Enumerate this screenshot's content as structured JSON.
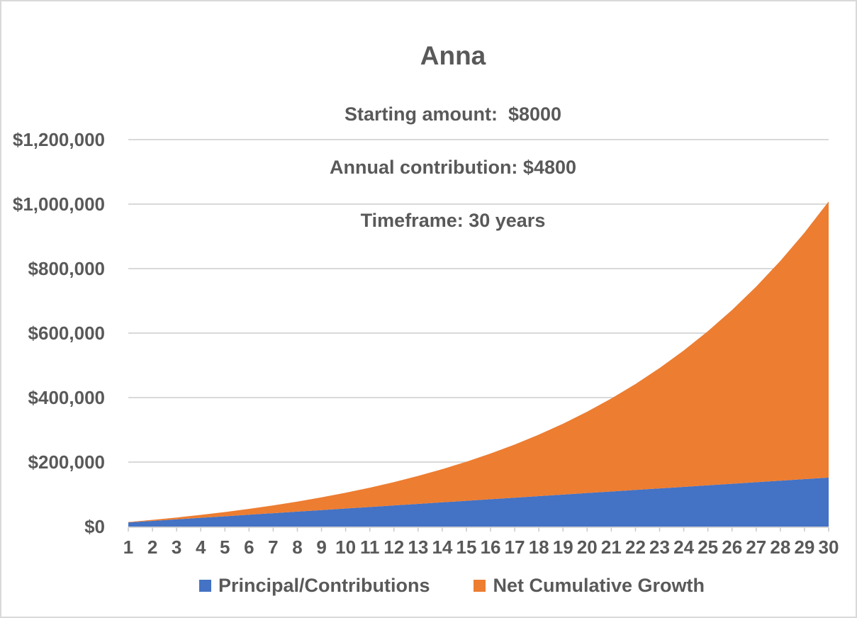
{
  "chart_data": {
    "type": "area",
    "stacked": true,
    "title": "Anna",
    "subtitle_lines": [
      "Starting amount:  $8000",
      "Annual contribution: $4800",
      "Timeframe: 30 years"
    ],
    "x": [
      1,
      2,
      3,
      4,
      5,
      6,
      7,
      8,
      9,
      10,
      11,
      12,
      13,
      14,
      15,
      16,
      17,
      18,
      19,
      20,
      21,
      22,
      23,
      24,
      25,
      26,
      27,
      28,
      29,
      30
    ],
    "xlabel": "",
    "ylabel": "",
    "ylim": [
      0,
      1200000
    ],
    "ytick_step": 200000,
    "ytick_labels": [
      "$0",
      "$200,000",
      "$400,000",
      "$600,000",
      "$800,000",
      "$1,000,000",
      "$1,200,000"
    ],
    "grid": "horizontal-only",
    "legend_position": "bottom",
    "series": [
      {
        "name": "Principal/Contributions",
        "color": "#4472C4",
        "values": [
          12800,
          17600,
          22400,
          27200,
          32000,
          36800,
          41600,
          46400,
          51200,
          56000,
          60800,
          65600,
          70400,
          75200,
          80000,
          84800,
          89600,
          94400,
          99200,
          104000,
          108800,
          113600,
          118400,
          123200,
          128000,
          132800,
          137600,
          142400,
          147200,
          152000
        ]
      },
      {
        "name": "Net Cumulative Growth",
        "color": "#ED7D31",
        "values": [
          1280,
          3168,
          5725,
          9017,
          13119,
          18111,
          24082,
          31130,
          39363,
          48900,
          59870,
          72416,
          86698,
          102888,
          121177,
          141774,
          164912,
          190843,
          219847,
          252232,
          288335,
          328529,
          373222,
          422864,
          477950,
          539025,
          606688,
          681596,
          764476,
          856124
        ]
      }
    ]
  },
  "colors": {
    "text": "#595959",
    "gridline": "#D9D9D9",
    "axis": "#C9C9C9",
    "background": "#FFFFFF",
    "border": "#D9D9D9"
  }
}
